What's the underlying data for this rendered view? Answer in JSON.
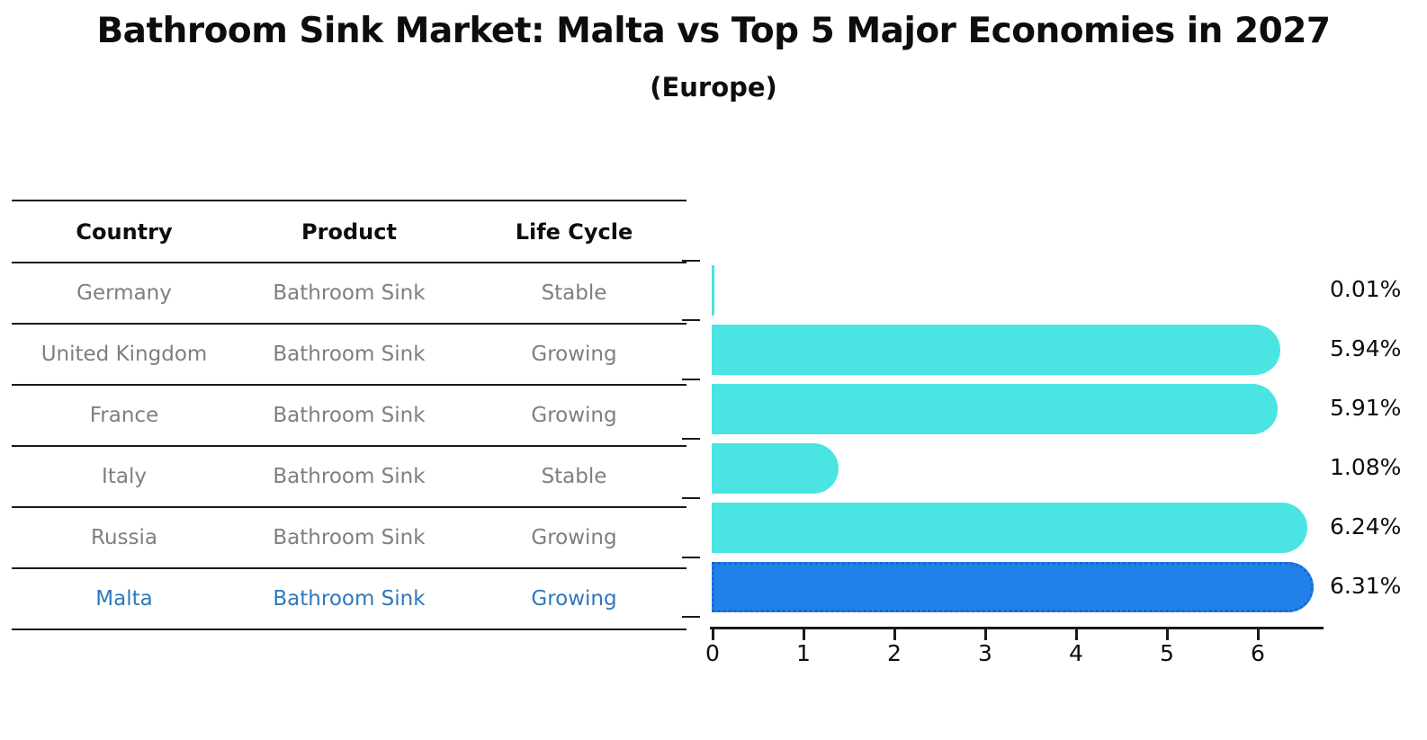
{
  "title": "Bathroom Sink Market: Malta vs Top 5 Major Economies in 2027",
  "subtitle": "(Europe)",
  "table": {
    "headers": [
      "Country",
      "Product",
      "Life Cycle"
    ],
    "rows": [
      {
        "country": "Germany",
        "product": "Bathroom Sink",
        "life_cycle": "Stable"
      },
      {
        "country": "United Kingdom",
        "product": "Bathroom Sink",
        "life_cycle": "Growing"
      },
      {
        "country": "France",
        "product": "Bathroom Sink",
        "life_cycle": "Growing"
      },
      {
        "country": "Italy",
        "product": "Bathroom Sink",
        "life_cycle": "Stable"
      },
      {
        "country": "Russia",
        "product": "Bathroom Sink",
        "life_cycle": "Growing"
      },
      {
        "country": "Malta",
        "product": "Bathroom Sink",
        "life_cycle": "Growing"
      }
    ],
    "highlighted_row": "Malta"
  },
  "chart_data": {
    "type": "bar",
    "orientation": "horizontal",
    "title": "Bathroom Sink Market: Malta vs Top 5 Major Economies in 2027",
    "subtitle": "(Europe)",
    "categories": [
      "Germany",
      "United Kingdom",
      "France",
      "Italy",
      "Russia",
      "Malta"
    ],
    "values": [
      0.01,
      5.94,
      5.91,
      1.08,
      6.24,
      6.31
    ],
    "value_labels": [
      "0.01%",
      "5.94%",
      "5.91%",
      "1.08%",
      "6.24%",
      "6.31%"
    ],
    "unit": "%",
    "highlight_index": 5,
    "x_ticks": [
      0,
      1,
      2,
      3,
      4,
      5,
      6
    ],
    "xlim": [
      0,
      6.65
    ],
    "grid": false,
    "legend": "none",
    "colors": {
      "bar": "#4ae4e2",
      "highlight_bar": "#2081e8",
      "highlight_bar_border": "#1b66d2",
      "highlight_text": "#2d79bd",
      "axis": "#1a1a1a",
      "cell_text": "#7f7f7f",
      "value_text": "#0d0d0d"
    }
  }
}
